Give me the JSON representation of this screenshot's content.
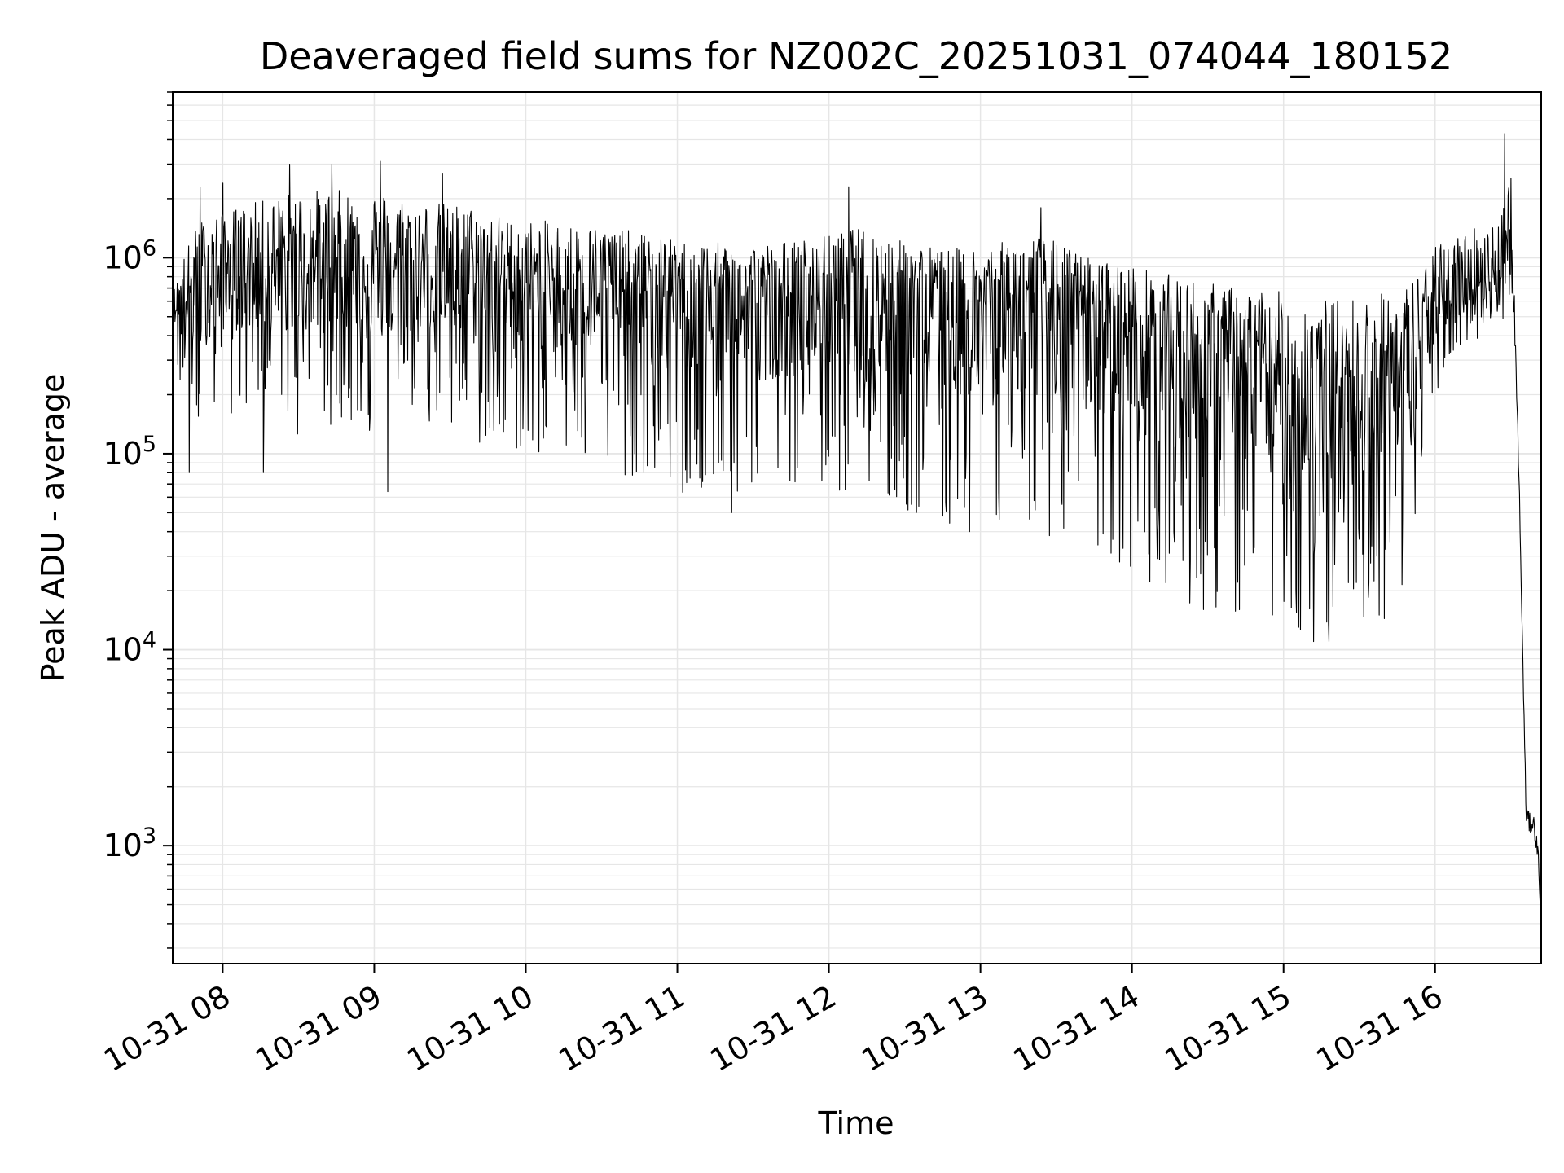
{
  "chart_data": {
    "type": "line",
    "title": "Deaveraged field sums for NZ002C_20251031_074044_180152",
    "xlabel": "Time",
    "ylabel": "Peak ADU - average",
    "y_scale": "log",
    "grid": true,
    "line_color": "#000000",
    "grid_color": "#e6e6e6",
    "xlim_hours": [
      7.67,
      16.7
    ],
    "ylim": [
      250,
      7000000
    ],
    "x_ticks": [
      {
        "hour": 8,
        "label": "10-31 08"
      },
      {
        "hour": 9,
        "label": "10-31 09"
      },
      {
        "hour": 10,
        "label": "10-31 10"
      },
      {
        "hour": 11,
        "label": "10-31 11"
      },
      {
        "hour": 12,
        "label": "10-31 12"
      },
      {
        "hour": 13,
        "label": "10-31 13"
      },
      {
        "hour": 14,
        "label": "10-31 14"
      },
      {
        "hour": 15,
        "label": "10-31 15"
      },
      {
        "hour": 16,
        "label": "10-31 16"
      }
    ],
    "y_ticks": [
      {
        "value": 1000,
        "base": "10",
        "exp": "3"
      },
      {
        "value": 10000,
        "base": "10",
        "exp": "4"
      },
      {
        "value": 100000,
        "base": "10",
        "exp": "5"
      },
      {
        "value": 1000000,
        "base": "10",
        "exp": "6"
      }
    ],
    "series": [
      {
        "name": "deaveraged field sum",
        "envelope": {
          "hours": [
            7.67,
            7.75,
            7.85,
            8.0,
            8.2,
            8.5,
            8.8,
            9.0,
            9.3,
            9.6,
            9.9,
            10.2,
            10.6,
            11.0,
            11.3,
            11.6,
            11.9,
            12.2,
            12.5,
            12.8,
            13.1,
            13.4,
            13.7,
            14.0,
            14.3,
            14.6,
            14.9,
            15.2,
            15.5,
            15.8,
            16.0,
            16.2,
            16.4,
            16.5,
            16.52,
            16.55,
            16.58,
            16.6,
            16.62,
            16.65,
            16.68,
            16.7
          ],
          "median": [
            550000,
            620000,
            750000,
            850000,
            850000,
            900000,
            900000,
            900000,
            850000,
            800000,
            750000,
            700000,
            700000,
            650000,
            600000,
            600000,
            620000,
            700000,
            650000,
            550000,
            580000,
            600000,
            500000,
            400000,
            320000,
            280000,
            230000,
            200000,
            220000,
            250000,
            500000,
            700000,
            850000,
            900000,
            600000,
            100000,
            8000,
            1500,
            1300,
            1300,
            900,
            400
          ],
          "high": [
            700000,
            1300000,
            2000000,
            2200000,
            2500000,
            3000000,
            3000000,
            3000000,
            2600000,
            2500000,
            2000000,
            2000000,
            1800000,
            1500000,
            1500000,
            1500000,
            1600000,
            1800000,
            1500000,
            1400000,
            1500000,
            1700000,
            1300000,
            1200000,
            1100000,
            1000000,
            1000000,
            900000,
            900000,
            1000000,
            1500000,
            1800000,
            1900000,
            4200000,
            900000,
            150000,
            10000,
            1800,
            1700,
            1500,
            1100,
            500
          ],
          "low": [
            400000,
            150000,
            100000,
            150000,
            150000,
            120000,
            150000,
            100000,
            150000,
            110000,
            100000,
            100000,
            80000,
            60000,
            50000,
            60000,
            70000,
            60000,
            50000,
            40000,
            40000,
            40000,
            30000,
            25000,
            18000,
            15000,
            13000,
            11000,
            13000,
            15000,
            200000,
            350000,
            450000,
            500000,
            400000,
            60000,
            6000,
            850,
            850,
            800,
            600,
            300
          ]
        },
        "spikes": [
          {
            "hour": 7.78,
            "value": 80000
          },
          {
            "hour": 7.85,
            "value": 2300000
          },
          {
            "hour": 8.0,
            "value": 2400000
          },
          {
            "hour": 8.27,
            "value": 80000
          },
          {
            "hour": 8.44,
            "value": 3000000
          },
          {
            "hour": 8.72,
            "value": 3000000
          },
          {
            "hour": 9.04,
            "value": 3100000
          },
          {
            "hour": 9.09,
            "value": 64000
          },
          {
            "hour": 9.45,
            "value": 2700000
          },
          {
            "hour": 10.78,
            "value": 80000
          },
          {
            "hour": 11.36,
            "value": 50000
          },
          {
            "hour": 12.13,
            "value": 2300000
          },
          {
            "hour": 12.93,
            "value": 40000
          },
          {
            "hour": 13.4,
            "value": 1800000
          },
          {
            "hour": 13.92,
            "value": 28000
          },
          {
            "hour": 14.47,
            "value": 16000
          },
          {
            "hour": 15.1,
            "value": 13000
          },
          {
            "hour": 15.2,
            "value": 11000
          },
          {
            "hour": 15.3,
            "value": 11000
          },
          {
            "hour": 15.63,
            "value": 15000
          },
          {
            "hour": 16.46,
            "value": 4300000
          }
        ]
      }
    ]
  }
}
